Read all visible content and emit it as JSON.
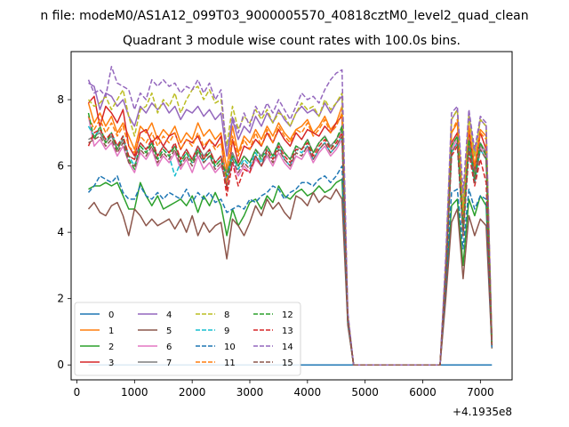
{
  "suptitle": "n file: modeM0/AS1A12_099T03_9000005570_40818cztM0_level2_quad_clean",
  "chart_data": {
    "type": "line",
    "title": "Quadrant 3 module wise count rates with 100.0s bins.",
    "xlabel": "",
    "ylabel": "",
    "offset_label": "+4.1935e8",
    "xlim": [
      -100,
      7550
    ],
    "ylim": [
      -0.45,
      9.45
    ],
    "xticks": [
      0,
      1000,
      2000,
      3000,
      4000,
      5000,
      6000,
      7000
    ],
    "yticks": [
      0,
      2,
      4,
      6,
      8
    ],
    "grid": false,
    "legend_position": "lower-left",
    "x": [
      200,
      300,
      400,
      500,
      600,
      700,
      800,
      900,
      1000,
      1100,
      1200,
      1300,
      1400,
      1500,
      1600,
      1700,
      1800,
      1900,
      2000,
      2100,
      2200,
      2300,
      2400,
      2500,
      2600,
      2700,
      2800,
      2900,
      3000,
      3100,
      3200,
      3300,
      3400,
      3500,
      3600,
      3700,
      3800,
      3900,
      4000,
      4100,
      4200,
      4300,
      4400,
      4500,
      4600,
      4700,
      4800,
      6300,
      6400,
      6500,
      6600,
      6700,
      6800,
      6900,
      7000,
      7100,
      7200
    ],
    "series": [
      {
        "name": "0",
        "color": "#1f77b4",
        "dash": "solid",
        "values": [
          0,
          0,
          0,
          0,
          0,
          0,
          0,
          0,
          0,
          0,
          0,
          0,
          0,
          0,
          0,
          0,
          0,
          0,
          0,
          0,
          0,
          0,
          0,
          0,
          0,
          0,
          0,
          0,
          0,
          0,
          0,
          0,
          0,
          0,
          0,
          0,
          0,
          0,
          0,
          0,
          0,
          0,
          0,
          0,
          0,
          0,
          0,
          0,
          0,
          0,
          0,
          0,
          0,
          0,
          0,
          0,
          0
        ]
      },
      {
        "name": "1",
        "color": "#ff7f0e",
        "dash": "solid",
        "values": [
          7.9,
          7.3,
          7.6,
          7.2,
          7.5,
          7.0,
          7.3,
          6.9,
          6.5,
          7.2,
          7.0,
          7.3,
          6.8,
          7.1,
          6.9,
          7.2,
          6.7,
          7.0,
          6.8,
          7.3,
          6.9,
          7.1,
          6.8,
          7.0,
          5.9,
          7.2,
          6.4,
          6.9,
          6.7,
          7.1,
          6.8,
          7.2,
          6.9,
          7.3,
          7.0,
          6.8,
          7.1,
          7.2,
          7.4,
          7.0,
          7.2,
          7.5,
          7.1,
          7.3,
          7.8,
          1.4,
          0,
          0,
          3.0,
          7.0,
          7.3,
          4.5,
          7.2,
          6.0,
          7.1,
          6.9,
          0.6
        ]
      },
      {
        "name": "2",
        "color": "#2ca02c",
        "dash": "solid",
        "values": [
          5.3,
          5.4,
          5.4,
          5.5,
          5.4,
          5.5,
          5.1,
          4.7,
          4.7,
          5.5,
          5.1,
          4.8,
          5.1,
          4.7,
          4.8,
          4.9,
          5.0,
          4.8,
          5.1,
          4.6,
          5.1,
          4.8,
          5.2,
          4.8,
          3.9,
          4.7,
          4.2,
          4.5,
          4.9,
          5.0,
          4.7,
          5.1,
          4.9,
          5.4,
          5.1,
          5.0,
          5.2,
          5.3,
          5.1,
          5.2,
          5.4,
          5.2,
          5.3,
          5.5,
          5.6,
          1.3,
          0,
          0,
          2.2,
          4.8,
          5.0,
          3.0,
          5.0,
          4.5,
          5.1,
          4.8,
          0.5
        ]
      },
      {
        "name": "3",
        "color": "#d62728",
        "dash": "solid",
        "values": [
          7.9,
          8.1,
          7.2,
          7.8,
          7.6,
          7.3,
          7.7,
          6.6,
          6.3,
          7.0,
          7.1,
          6.7,
          6.9,
          6.6,
          6.9,
          7.0,
          6.5,
          6.8,
          6.7,
          6.9,
          6.5,
          6.8,
          6.6,
          6.9,
          5.3,
          6.8,
          6.1,
          6.6,
          6.5,
          6.8,
          6.6,
          7.0,
          6.7,
          7.1,
          6.8,
          6.6,
          7.0,
          6.8,
          7.1,
          7.0,
          6.9,
          7.2,
          7.0,
          7.3,
          7.5,
          1.3,
          0,
          0,
          2.6,
          6.7,
          7.0,
          4.0,
          7.1,
          5.8,
          7.0,
          6.5,
          0.6
        ]
      },
      {
        "name": "4",
        "color": "#9467bd",
        "dash": "solid",
        "values": [
          8.5,
          8.4,
          7.7,
          8.2,
          8.1,
          7.8,
          8.0,
          7.5,
          7.2,
          7.8,
          7.6,
          7.9,
          7.7,
          7.9,
          7.6,
          7.8,
          7.4,
          7.7,
          7.6,
          7.8,
          7.5,
          7.7,
          7.4,
          7.6,
          6.3,
          7.4,
          6.8,
          7.2,
          7.0,
          7.5,
          7.2,
          7.6,
          7.3,
          7.7,
          7.4,
          7.2,
          7.6,
          7.8,
          7.6,
          7.7,
          7.5,
          7.9,
          7.6,
          7.9,
          8.1,
          1.5,
          0,
          0,
          3.1,
          7.4,
          7.7,
          4.7,
          7.6,
          6.3,
          7.4,
          7.2,
          0.7
        ]
      },
      {
        "name": "5",
        "color": "#8c564b",
        "dash": "solid",
        "values": [
          4.7,
          4.9,
          4.6,
          4.5,
          4.8,
          4.9,
          4.5,
          3.9,
          4.7,
          4.5,
          4.2,
          4.4,
          4.2,
          4.3,
          4.4,
          4.1,
          4.4,
          4.0,
          4.5,
          3.9,
          4.3,
          4.0,
          4.2,
          4.3,
          3.2,
          4.4,
          4.2,
          3.9,
          4.3,
          4.8,
          4.5,
          5.0,
          4.7,
          4.9,
          4.6,
          4.4,
          5.1,
          5.0,
          4.8,
          5.2,
          4.9,
          5.1,
          5.0,
          5.3,
          5.0,
          1.2,
          0,
          0,
          2.0,
          4.3,
          4.7,
          2.6,
          4.5,
          3.9,
          4.4,
          4.2,
          0.5
        ]
      },
      {
        "name": "6",
        "color": "#e377c2",
        "dash": "solid",
        "values": [
          7.5,
          6.6,
          6.8,
          6.5,
          6.7,
          6.3,
          6.6,
          6.1,
          5.8,
          6.4,
          6.2,
          6.5,
          6.0,
          6.3,
          6.1,
          6.4,
          5.9,
          6.2,
          5.8,
          6.3,
          5.9,
          6.1,
          5.8,
          6.0,
          5.5,
          6.1,
          5.7,
          6.0,
          5.8,
          6.2,
          6.0,
          6.3,
          6.0,
          6.4,
          6.1,
          5.9,
          6.3,
          6.2,
          6.5,
          6.1,
          6.4,
          6.6,
          6.3,
          6.5,
          6.8,
          1.4,
          0,
          0,
          2.7,
          6.5,
          6.8,
          4.0,
          6.7,
          5.6,
          6.6,
          6.3,
          0.6
        ]
      },
      {
        "name": "7",
        "color": "#7f7f7f",
        "dash": "solid",
        "values": [
          6.8,
          6.9,
          7.0,
          6.7,
          6.9,
          6.5,
          6.8,
          6.3,
          6.2,
          6.7,
          6.5,
          6.7,
          6.3,
          6.6,
          6.4,
          6.6,
          6.2,
          6.5,
          6.2,
          6.6,
          6.3,
          6.5,
          6.1,
          6.3,
          5.8,
          6.4,
          6.0,
          6.3,
          6.1,
          6.5,
          6.3,
          6.6,
          6.3,
          6.7,
          6.4,
          6.2,
          6.6,
          6.5,
          6.8,
          6.4,
          6.7,
          6.9,
          6.6,
          6.8,
          7.1,
          1.4,
          0,
          0,
          2.8,
          6.6,
          6.9,
          4.2,
          6.8,
          5.7,
          6.7,
          6.4,
          0.6
        ]
      },
      {
        "name": "8",
        "color": "#bcbd22",
        "dash": "dashed",
        "values": [
          8.0,
          7.8,
          7.9,
          8.1,
          7.7,
          8.0,
          8.3,
          7.5,
          6.9,
          7.7,
          7.8,
          8.2,
          7.6,
          8.0,
          7.8,
          8.2,
          7.6,
          8.0,
          8.3,
          8.4,
          8.0,
          8.3,
          7.9,
          8.0,
          6.6,
          7.8,
          7.1,
          7.5,
          7.3,
          7.7,
          7.4,
          7.7,
          7.3,
          7.6,
          7.5,
          7.2,
          7.6,
          7.9,
          7.7,
          7.8,
          7.5,
          8.0,
          7.7,
          7.9,
          8.2,
          1.5,
          0,
          0,
          3.1,
          7.4,
          7.7,
          4.7,
          7.5,
          6.3,
          7.4,
          7.2,
          0.7
        ]
      },
      {
        "name": "9",
        "color": "#17becf",
        "dash": "dashed",
        "values": [
          7.2,
          6.9,
          7.1,
          6.8,
          7.0,
          6.6,
          6.9,
          6.3,
          6.0,
          6.6,
          6.4,
          6.7,
          6.2,
          6.5,
          6.3,
          5.7,
          6.1,
          6.4,
          6.1,
          6.5,
          6.1,
          6.3,
          6.0,
          6.2,
          5.6,
          6.3,
          5.9,
          6.2,
          6.0,
          6.4,
          6.1,
          6.5,
          6.2,
          6.6,
          6.2,
          6.0,
          6.5,
          6.4,
          6.6,
          6.2,
          6.5,
          6.7,
          6.4,
          6.6,
          6.9,
          1.4,
          0,
          0,
          2.7,
          6.4,
          6.7,
          4.0,
          6.6,
          5.5,
          6.5,
          6.2,
          0.6
        ]
      },
      {
        "name": "10",
        "color": "#1f77b4",
        "dash": "dashed",
        "values": [
          5.2,
          5.4,
          5.7,
          5.6,
          5.5,
          5.7,
          5.2,
          5.0,
          5.0,
          5.4,
          5.1,
          5.0,
          5.2,
          5.0,
          5.2,
          5.1,
          5.0,
          5.3,
          4.9,
          5.2,
          5.0,
          5.2,
          4.9,
          5.0,
          4.6,
          4.7,
          4.8,
          4.7,
          5.0,
          4.9,
          5.1,
          5.2,
          5.4,
          5.3,
          5.0,
          5.2,
          5.3,
          5.5,
          5.5,
          5.4,
          5.6,
          5.7,
          5.5,
          5.7,
          6.0,
          1.3,
          0,
          0,
          2.4,
          5.2,
          5.3,
          3.5,
          5.3,
          4.7,
          5.1,
          5.0,
          0.5
        ]
      },
      {
        "name": "11",
        "color": "#ff7f0e",
        "dash": "dashed",
        "values": [
          7.5,
          7.1,
          7.4,
          7.0,
          7.3,
          6.9,
          7.2,
          6.6,
          6.4,
          6.9,
          6.7,
          7.0,
          6.6,
          6.9,
          6.7,
          7.0,
          6.5,
          6.8,
          6.6,
          7.0,
          6.6,
          6.8,
          6.5,
          6.7,
          5.5,
          6.9,
          6.3,
          6.8,
          6.5,
          7.0,
          6.6,
          7.1,
          6.7,
          7.2,
          6.9,
          6.7,
          7.1,
          7.0,
          7.3,
          6.9,
          7.1,
          7.4,
          7.0,
          7.2,
          7.6,
          1.4,
          0,
          0,
          2.9,
          7.0,
          7.4,
          4.3,
          7.2,
          6.0,
          7.0,
          6.8,
          0.6
        ]
      },
      {
        "name": "12",
        "color": "#2ca02c",
        "dash": "dashed",
        "values": [
          7.6,
          6.8,
          7.2,
          6.7,
          7.0,
          6.5,
          6.9,
          6.2,
          5.9,
          6.6,
          6.4,
          6.7,
          6.2,
          6.5,
          6.3,
          6.6,
          6.1,
          6.4,
          6.1,
          6.5,
          6.2,
          6.4,
          6.0,
          6.2,
          5.7,
          6.3,
          6.0,
          6.3,
          6.1,
          6.5,
          6.2,
          6.6,
          6.3,
          6.7,
          6.4,
          6.2,
          6.6,
          6.5,
          6.8,
          6.4,
          6.7,
          6.9,
          6.5,
          6.8,
          7.2,
          1.4,
          0,
          0,
          2.8,
          6.6,
          6.9,
          4.1,
          6.8,
          5.6,
          6.7,
          6.3,
          0.6
        ]
      },
      {
        "name": "13",
        "color": "#d62728",
        "dash": "dashed",
        "values": [
          6.6,
          7.0,
          7.1,
          6.8,
          7.0,
          6.6,
          6.9,
          6.3,
          6.2,
          6.7,
          6.5,
          6.8,
          6.3,
          6.6,
          6.4,
          6.7,
          6.2,
          6.5,
          6.2,
          6.6,
          6.2,
          6.5,
          6.1,
          6.3,
          5.1,
          6.1,
          5.4,
          5.9,
          5.8,
          6.3,
          6.0,
          6.5,
          6.2,
          6.6,
          6.3,
          6.1,
          6.5,
          6.5,
          6.7,
          6.3,
          6.6,
          6.8,
          6.5,
          6.7,
          7.0,
          1.4,
          0,
          0,
          2.7,
          6.3,
          6.6,
          3.9,
          6.4,
          5.4,
          6.2,
          5.5,
          0.6
        ]
      },
      {
        "name": "14",
        "color": "#9467bd",
        "dash": "dashed",
        "values": [
          8.6,
          8.2,
          8.3,
          8.1,
          9.0,
          8.5,
          8.4,
          8.3,
          7.7,
          8.2,
          8.0,
          8.6,
          8.4,
          8.6,
          8.4,
          8.5,
          8.2,
          8.4,
          8.3,
          8.6,
          8.2,
          8.5,
          8.0,
          8.3,
          6.3,
          7.5,
          7.0,
          7.6,
          7.2,
          7.8,
          7.5,
          7.9,
          7.6,
          8.0,
          7.7,
          7.4,
          7.8,
          8.2,
          8.0,
          8.1,
          7.9,
          8.3,
          8.6,
          8.8,
          8.9,
          1.6,
          0,
          0,
          3.3,
          7.6,
          7.8,
          5.2,
          7.7,
          6.5,
          7.5,
          7.3,
          0.7
        ]
      },
      {
        "name": "15",
        "color": "#8c564b",
        "dash": "dashed",
        "values": [
          6.7,
          6.8,
          6.9,
          6.6,
          6.8,
          6.4,
          6.7,
          6.1,
          6.0,
          6.5,
          6.3,
          6.6,
          6.1,
          6.4,
          6.2,
          6.5,
          6.0,
          6.3,
          6.0,
          6.4,
          6.1,
          6.3,
          5.9,
          6.1,
          5.4,
          6.2,
          5.8,
          6.1,
          5.9,
          6.3,
          6.0,
          6.4,
          6.1,
          6.5,
          6.2,
          6.0,
          6.4,
          6.3,
          6.6,
          6.2,
          6.5,
          6.7,
          6.4,
          6.6,
          6.9,
          1.4,
          0,
          0,
          2.6,
          6.4,
          6.7,
          3.9,
          6.6,
          5.5,
          6.5,
          6.2,
          0.6
        ]
      }
    ]
  }
}
